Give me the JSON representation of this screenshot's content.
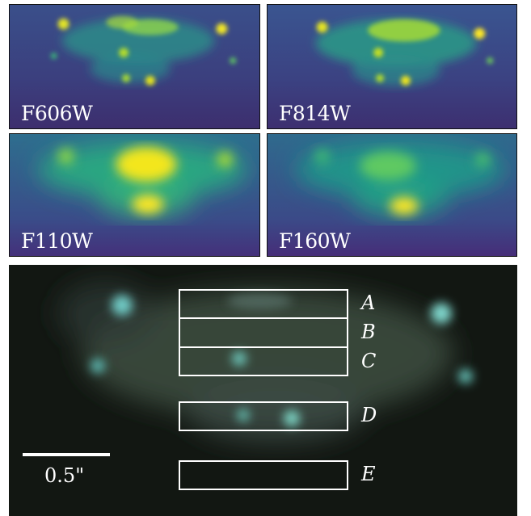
{
  "panels": [
    {
      "id": "f606w",
      "label": "F606W"
    },
    {
      "id": "f814w",
      "label": "F814W"
    },
    {
      "id": "f110w",
      "label": "F110W"
    },
    {
      "id": "f160w",
      "label": "F160W"
    }
  ],
  "composite": {
    "regions": [
      {
        "label": "A"
      },
      {
        "label": "B"
      },
      {
        "label": "C"
      },
      {
        "label": "D"
      },
      {
        "label": "E"
      }
    ],
    "scalebar_label": "0.5\""
  },
  "colors": {
    "background_map": "#440154",
    "mid_map": "#21918c",
    "peak_map": "#fde725",
    "composite_bg": "#141a14",
    "annotation": "#ffffff"
  }
}
